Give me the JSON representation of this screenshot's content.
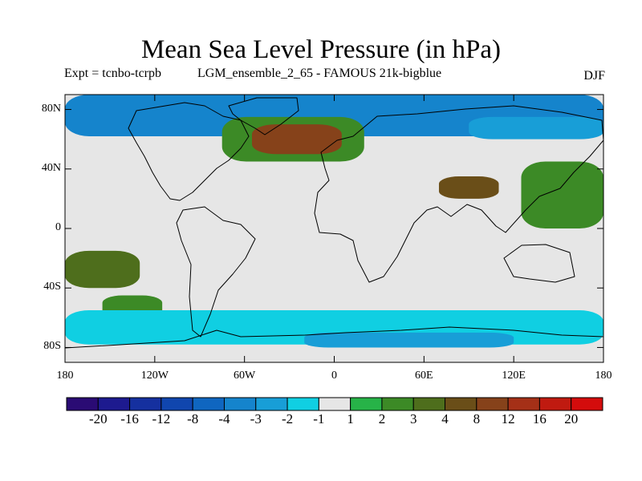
{
  "title": "Mean Sea Level Pressure (in hPa)",
  "experiment": "Expt = tcnbo-tcrpb",
  "run": "LGM_ensemble_2_65 - FAMOUS 21k-bigblue",
  "season": "DJF",
  "map": {
    "projection": "cylindrical equidistant",
    "lon_range": [
      -180,
      180
    ],
    "lat_range": [
      -90,
      90
    ],
    "ocean_color": "#e6e6e6",
    "coast_color": "#000000"
  },
  "axes": {
    "lat_ticks": [
      {
        "value": 80,
        "label": "80N"
      },
      {
        "value": 40,
        "label": "40N"
      },
      {
        "value": 0,
        "label": "0"
      },
      {
        "value": -40,
        "label": "40S"
      },
      {
        "value": -80,
        "label": "80S"
      }
    ],
    "lon_ticks": [
      {
        "value": -180,
        "label": "180"
      },
      {
        "value": -120,
        "label": "120W"
      },
      {
        "value": -60,
        "label": "60W"
      },
      {
        "value": 0,
        "label": "0"
      },
      {
        "value": 60,
        "label": "60E"
      },
      {
        "value": 120,
        "label": "120E"
      },
      {
        "value": 180,
        "label": "180"
      }
    ]
  },
  "colorbar": {
    "colors": [
      "#2a0b74",
      "#1d1a8f",
      "#15309f",
      "#1046ae",
      "#0f66c0",
      "#1584cc",
      "#189ed7",
      "#10cfe2",
      "#e6e6e6",
      "#27b348",
      "#3c8a26",
      "#4e6e1c",
      "#6a4e18",
      "#86421a",
      "#a53017",
      "#c01a10",
      "#d40c0c"
    ],
    "labels": [
      "-20",
      "-16",
      "-12",
      "-8",
      "-4",
      "-3",
      "-2",
      "-1",
      "1",
      "2",
      "3",
      "4",
      "8",
      "12",
      "16",
      "20"
    ]
  },
  "chart_data": {
    "type": "contour-map",
    "field": "mean sea level pressure anomaly (hPa)",
    "levels": [
      -20,
      -16,
      -12,
      -8,
      -4,
      -3,
      -2,
      -1,
      1,
      2,
      3,
      4,
      8,
      12,
      16,
      20
    ],
    "regions": [
      {
        "name": "arctic-low",
        "lon": [
          -180,
          180
        ],
        "lat": [
          62,
          90
        ],
        "value": -4
      },
      {
        "name": "arctic-low-east",
        "lon": [
          90,
          180
        ],
        "lat": [
          60,
          75
        ],
        "value": -3
      },
      {
        "name": "pacific-tropical-low",
        "lon": [
          -100,
          -20
        ],
        "lat": [
          -10,
          35
        ],
        "value": -1
      },
      {
        "name": "north-atlantic-high",
        "lon": [
          -75,
          20
        ],
        "lat": [
          45,
          75
        ],
        "value": 2
      },
      {
        "name": "north-atlantic-high-core",
        "lon": [
          -55,
          5
        ],
        "lat": [
          50,
          70
        ],
        "value": 8
      },
      {
        "name": "east-asia-high",
        "lon": [
          70,
          110
        ],
        "lat": [
          20,
          35
        ],
        "value": 4
      },
      {
        "name": "west-pacific-high",
        "lon": [
          125,
          180
        ],
        "lat": [
          0,
          45
        ],
        "value": 2
      },
      {
        "name": "south-pacific-high",
        "lon": [
          -180,
          -130
        ],
        "lat": [
          -40,
          -15
        ],
        "value": 3
      },
      {
        "name": "south-atlantic-high",
        "lon": [
          -155,
          -115
        ],
        "lat": [
          -60,
          -45
        ],
        "value": 2
      },
      {
        "name": "indian-ocean-low",
        "lon": [
          10,
          90
        ],
        "lat": [
          -40,
          0
        ],
        "value": -1
      },
      {
        "name": "southern-ocean-low",
        "lon": [
          -180,
          180
        ],
        "lat": [
          -78,
          -55
        ],
        "value": -2
      },
      {
        "name": "antarctic-coast-low",
        "lon": [
          -20,
          120
        ],
        "lat": [
          -80,
          -70
        ],
        "value": -3
      }
    ]
  }
}
